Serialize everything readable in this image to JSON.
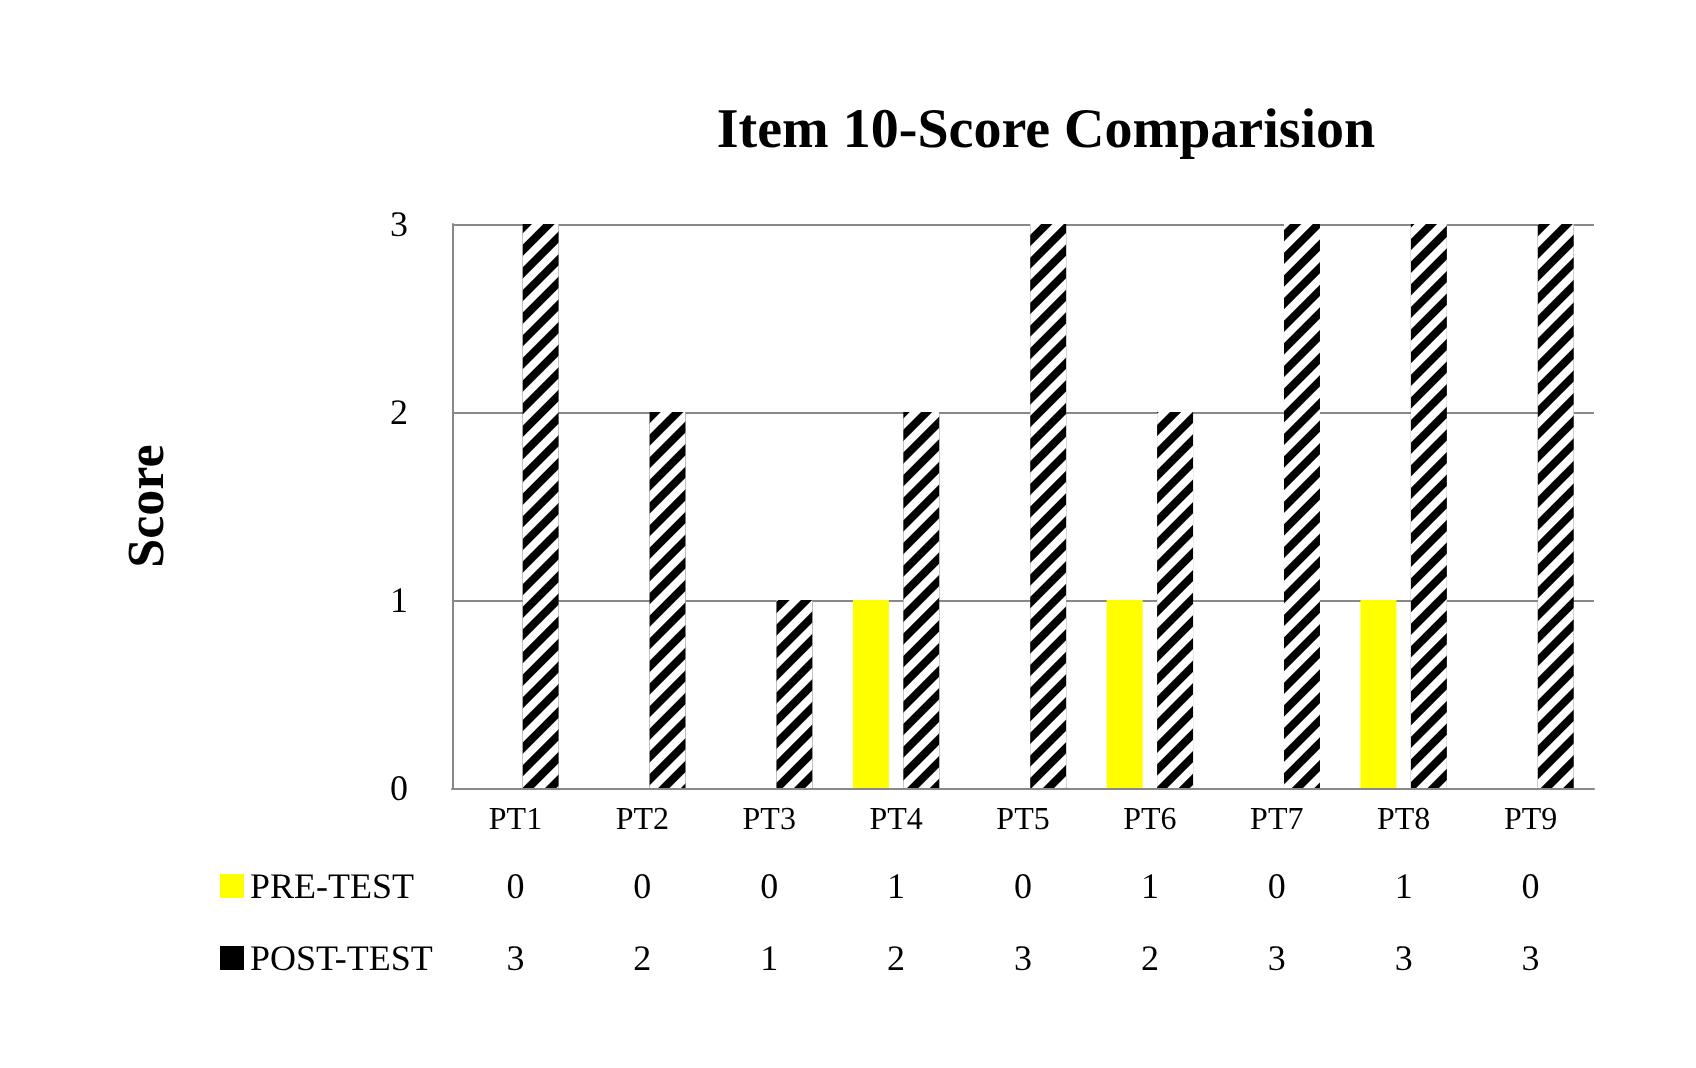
{
  "chart_data": {
    "type": "bar",
    "title": "Item 10-Score Comparision",
    "ylabel": "Score",
    "categories": [
      "PT1",
      "PT2",
      "PT3",
      "PT4",
      "PT5",
      "PT6",
      "PT7",
      "PT8",
      "PT9"
    ],
    "series": [
      {
        "name": "PRE-TEST",
        "color": "#ffff00",
        "values": [
          0,
          0,
          0,
          1,
          0,
          1,
          0,
          1,
          0
        ]
      },
      {
        "name": "POST-TEST",
        "color": "#000000",
        "values": [
          3,
          2,
          1,
          2,
          3,
          2,
          3,
          3,
          3
        ]
      }
    ],
    "ylim": [
      0,
      3
    ],
    "yticks": [
      0,
      1,
      2,
      3
    ],
    "grid": "y",
    "legend": "bottom",
    "data_labels": true
  }
}
